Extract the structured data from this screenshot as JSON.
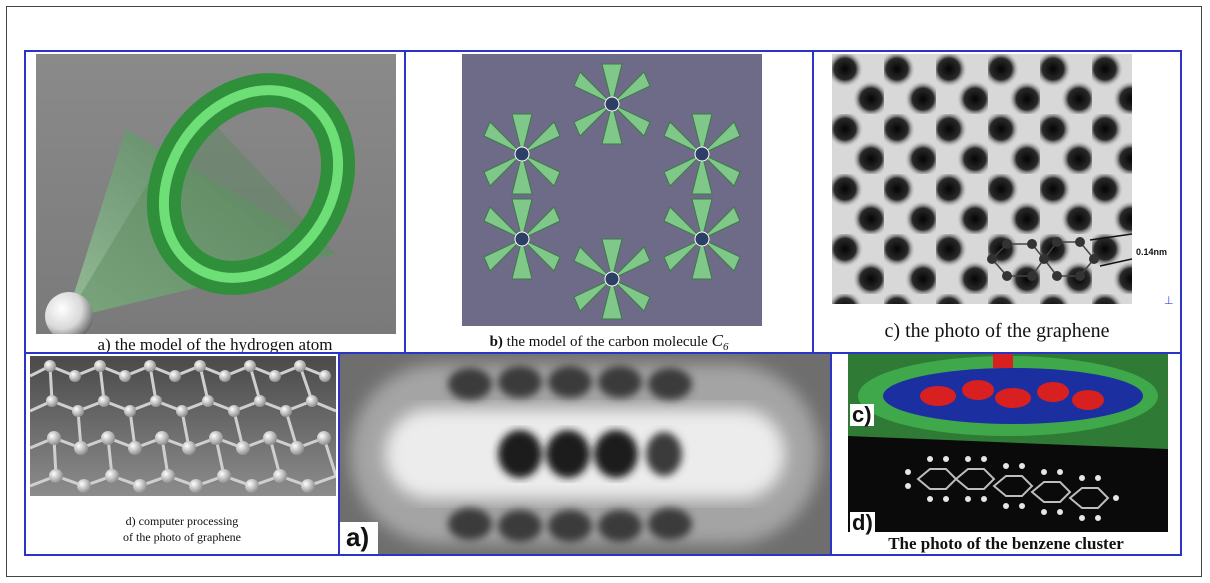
{
  "panels": {
    "hydrogen": {
      "caption": "a) the model of the hydrogen atom"
    },
    "carbon": {
      "caption_bold": "b)",
      "caption_text": " the model of the carbon molecule ",
      "caption_symbol": "C",
      "caption_sub": "6"
    },
    "graphene_photo": {
      "caption": "c) the photo of the graphene",
      "scale_label": "0.14nm"
    },
    "graphene_model": {
      "caption_line1": "d) computer processing",
      "caption_line2": "of the photo of graphene"
    },
    "stm": {
      "label": "a)"
    },
    "benzene": {
      "label_c": "c)",
      "label_d": "d)",
      "caption": "The photo of the benzene cluster"
    }
  }
}
